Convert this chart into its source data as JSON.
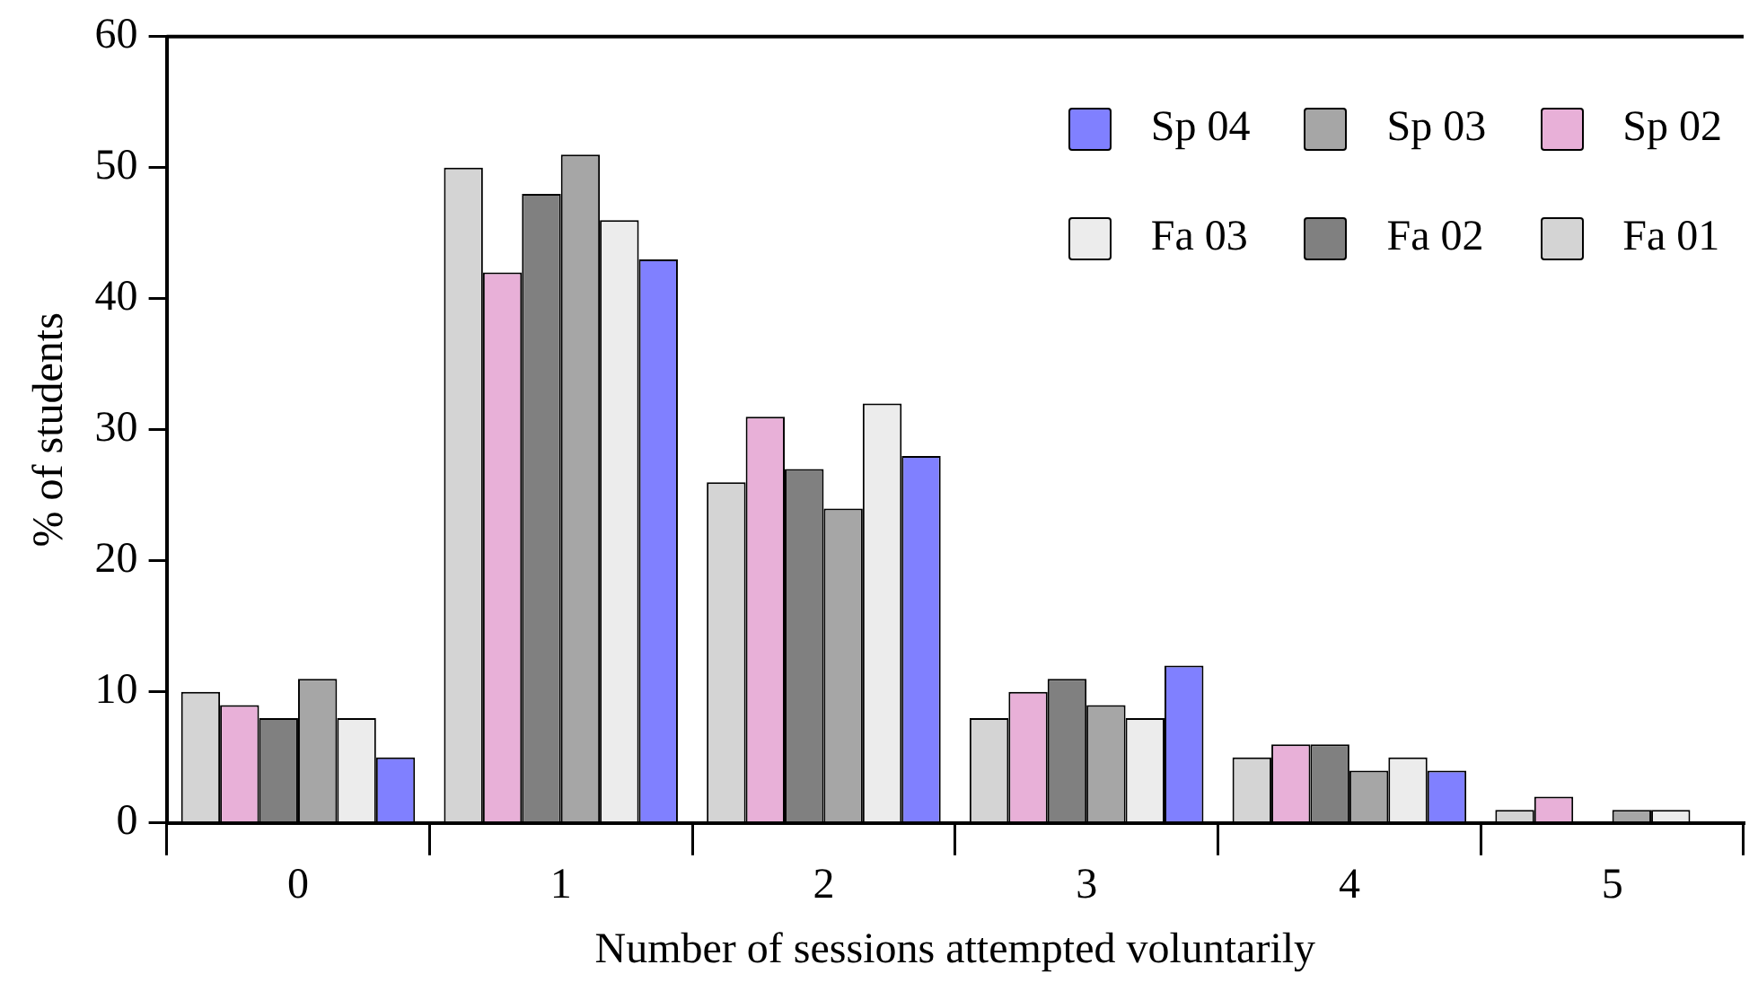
{
  "chart_data": {
    "type": "bar",
    "xlabel": "Number of sessions attempted voluntarily",
    "ylabel": "% of students",
    "categories": [
      "0",
      "1",
      "2",
      "3",
      "4",
      "5"
    ],
    "series": [
      {
        "name": "Fa 01",
        "color": "#d4d4d4",
        "values": [
          10,
          50,
          26,
          8,
          5,
          1
        ]
      },
      {
        "name": "Sp 02",
        "color": "#e8b0d8",
        "values": [
          9,
          42,
          31,
          10,
          6,
          2
        ]
      },
      {
        "name": "Fa 02",
        "color": "#808080",
        "values": [
          8,
          48,
          27,
          11,
          6,
          0
        ]
      },
      {
        "name": "Sp 03",
        "color": "#a6a6a6",
        "values": [
          11,
          51,
          24,
          9,
          4,
          1
        ]
      },
      {
        "name": "Fa 03",
        "color": "#ececec",
        "values": [
          8,
          46,
          32,
          8,
          5,
          1
        ]
      },
      {
        "name": "Sp 04",
        "color": "#8080ff",
        "values": [
          5,
          43,
          28,
          12,
          4,
          0
        ]
      }
    ],
    "ylim": [
      0,
      60
    ],
    "yticks": [
      0,
      10,
      20,
      30,
      40,
      50,
      60
    ],
    "grid": false,
    "legend": "top right"
  }
}
